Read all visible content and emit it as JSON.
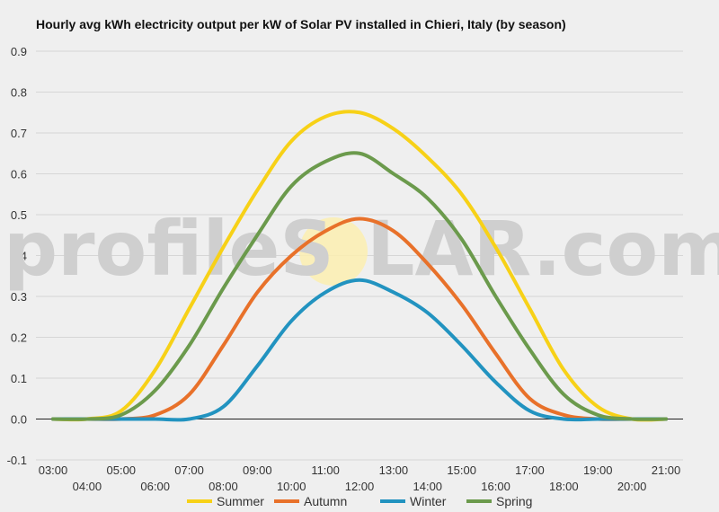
{
  "chart_data": {
    "type": "line",
    "title": "Hourly avg kWh electricity output per kW of Solar PV installed in Chieri, Italy (by season)",
    "xlabel": "",
    "ylabel": "",
    "ylim": [
      -0.1,
      0.9
    ],
    "yticks": [
      "-0.1",
      "0.0",
      "0.1",
      "0.2",
      "0.3",
      "0.4",
      "0.5",
      "0.6",
      "0.7",
      "0.8",
      "0.9"
    ],
    "grid": true,
    "legend_position": "bottom",
    "x": [
      "03:00",
      "04:00",
      "05:00",
      "06:00",
      "07:00",
      "08:00",
      "09:00",
      "10:00",
      "11:00",
      "12:00",
      "13:00",
      "14:00",
      "15:00",
      "16:00",
      "17:00",
      "18:00",
      "19:00",
      "20:00",
      "21:00"
    ],
    "series": [
      {
        "name": "Summer",
        "color": "#f7d117",
        "values": [
          0.0,
          0.0,
          0.02,
          0.12,
          0.27,
          0.42,
          0.56,
          0.68,
          0.74,
          0.75,
          0.71,
          0.64,
          0.55,
          0.42,
          0.27,
          0.12,
          0.03,
          0.0,
          0.0
        ]
      },
      {
        "name": "Autumn",
        "color": "#e8712a",
        "values": [
          0.0,
          0.0,
          0.0,
          0.01,
          0.06,
          0.18,
          0.31,
          0.4,
          0.46,
          0.49,
          0.46,
          0.38,
          0.28,
          0.16,
          0.05,
          0.01,
          0.0,
          0.0,
          0.0
        ]
      },
      {
        "name": "Winter",
        "color": "#2293c0",
        "values": [
          0.0,
          0.0,
          0.0,
          0.0,
          0.0,
          0.03,
          0.13,
          0.24,
          0.31,
          0.34,
          0.31,
          0.26,
          0.18,
          0.09,
          0.02,
          0.0,
          0.0,
          0.0,
          0.0
        ]
      },
      {
        "name": "Spring",
        "color": "#6b9a4c",
        "values": [
          0.0,
          0.0,
          0.01,
          0.07,
          0.18,
          0.32,
          0.45,
          0.57,
          0.63,
          0.65,
          0.6,
          0.54,
          0.44,
          0.3,
          0.17,
          0.06,
          0.01,
          0.0,
          0.0
        ]
      }
    ]
  },
  "watermark": {
    "part1": "profileS",
    "part2": "LAR.com"
  }
}
